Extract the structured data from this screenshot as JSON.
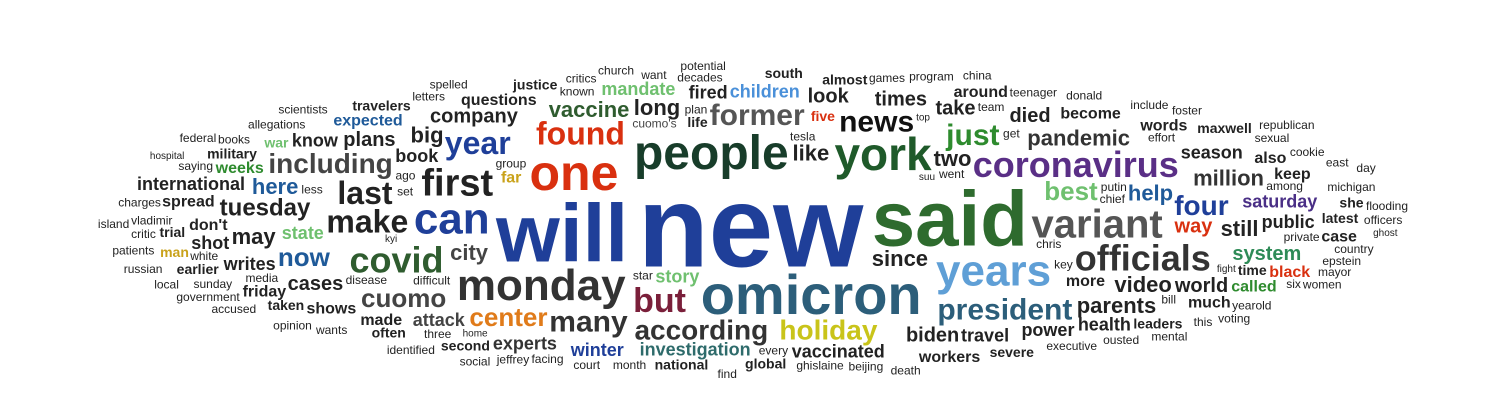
{
  "words": [
    {
      "text": "said",
      "size": 78,
      "color": "#2e6b2e"
    },
    {
      "text": "new",
      "size": 116,
      "color": "#1f3f99"
    },
    {
      "text": "will",
      "size": 82,
      "color": "#1f3f99"
    },
    {
      "text": "omicron",
      "size": 56,
      "color": "#2c5e7a"
    },
    {
      "text": "years",
      "size": 44,
      "color": "#5f9fd6"
    },
    {
      "text": "people",
      "size": 48,
      "color": "#183d2a"
    },
    {
      "text": "one",
      "size": 50,
      "color": "#d9300f"
    },
    {
      "text": "york",
      "size": 46,
      "color": "#1f5a2a"
    },
    {
      "text": "can",
      "size": 44,
      "color": "#1f3f99"
    },
    {
      "text": "monday",
      "size": 44,
      "color": "#333333"
    },
    {
      "text": "variant",
      "size": 40,
      "color": "#555555"
    },
    {
      "text": "coronavirus",
      "size": 36,
      "color": "#5a2f86"
    },
    {
      "text": "covid",
      "size": 36,
      "color": "#2f5c2f"
    },
    {
      "text": "first",
      "size": 38,
      "color": "#222222"
    },
    {
      "text": "officials",
      "size": 36,
      "color": "#333333"
    },
    {
      "text": "make",
      "size": 32,
      "color": "#222222"
    },
    {
      "text": "last",
      "size": 32,
      "color": "#222222"
    },
    {
      "text": "former",
      "size": 30,
      "color": "#555555"
    },
    {
      "text": "year",
      "size": 32,
      "color": "#1f3f99"
    },
    {
      "text": "found",
      "size": 32,
      "color": "#d9300f"
    },
    {
      "text": "but",
      "size": 34,
      "color": "#7a1f3a"
    },
    {
      "text": "just",
      "size": 30,
      "color": "#2e8b2e"
    },
    {
      "text": "four",
      "size": 28,
      "color": "#1f3f99"
    },
    {
      "text": "holiday",
      "size": 28,
      "color": "#c9c41a"
    },
    {
      "text": "president",
      "size": 30,
      "color": "#2c5e7a"
    },
    {
      "text": "many",
      "size": 30,
      "color": "#333333"
    },
    {
      "text": "including",
      "size": 28,
      "color": "#444444"
    },
    {
      "text": "news",
      "size": 30,
      "color": "#111111"
    },
    {
      "text": "best",
      "size": 26,
      "color": "#6fc06f"
    },
    {
      "text": "according",
      "size": 28,
      "color": "#333333"
    },
    {
      "text": "cuomo",
      "size": 26,
      "color": "#444444"
    },
    {
      "text": "now",
      "size": 26,
      "color": "#1f5a99"
    },
    {
      "text": "center",
      "size": 26,
      "color": "#e07b1a"
    },
    {
      "text": "tuesday",
      "size": 24,
      "color": "#222222"
    },
    {
      "text": "pandemic",
      "size": 22,
      "color": "#333333"
    },
    {
      "text": "vaccine",
      "size": 22,
      "color": "#2f5c2f"
    },
    {
      "text": "video",
      "size": 22,
      "color": "#222222"
    },
    {
      "text": "million",
      "size": 22,
      "color": "#333333"
    },
    {
      "text": "city",
      "size": 22,
      "color": "#444444"
    },
    {
      "text": "biden",
      "size": 20,
      "color": "#222222"
    },
    {
      "text": "children",
      "size": 18,
      "color": "#4a90d9"
    },
    {
      "text": "company",
      "size": 20,
      "color": "#222222"
    },
    {
      "text": "cases",
      "size": 20,
      "color": "#222222"
    },
    {
      "text": "parents",
      "size": 22,
      "color": "#222222"
    },
    {
      "text": "long",
      "size": 22,
      "color": "#222222"
    },
    {
      "text": "plans",
      "size": 20,
      "color": "#222222"
    },
    {
      "text": "take",
      "size": 20,
      "color": "#222222"
    },
    {
      "text": "since",
      "size": 22,
      "color": "#222222"
    },
    {
      "text": "system",
      "size": 20,
      "color": "#2e8b57"
    },
    {
      "text": "times",
      "size": 20,
      "color": "#222222"
    },
    {
      "text": "look",
      "size": 20,
      "color": "#222222"
    },
    {
      "text": "book",
      "size": 18,
      "color": "#222222"
    },
    {
      "text": "help",
      "size": 22,
      "color": "#1f5a99"
    },
    {
      "text": "like",
      "size": 22,
      "color": "#222222"
    },
    {
      "text": "two",
      "size": 22,
      "color": "#222222"
    },
    {
      "text": "may",
      "size": 22,
      "color": "#222222"
    },
    {
      "text": "still",
      "size": 22,
      "color": "#222222"
    },
    {
      "text": "big",
      "size": 22,
      "color": "#222222"
    },
    {
      "text": "here",
      "size": 22,
      "color": "#1f5a99"
    },
    {
      "text": "way",
      "size": 20,
      "color": "#d9300f"
    },
    {
      "text": "saturday",
      "size": 18,
      "color": "#4a2f86"
    },
    {
      "text": "investigation",
      "size": 18,
      "color": "#2e6b6b"
    },
    {
      "text": "attack",
      "size": 18,
      "color": "#444444"
    },
    {
      "text": "travel",
      "size": 18,
      "color": "#222222"
    },
    {
      "text": "world",
      "size": 20,
      "color": "#222222"
    },
    {
      "text": "died",
      "size": 20,
      "color": "#222222"
    },
    {
      "text": "vaccinated",
      "size": 18,
      "color": "#222222"
    },
    {
      "text": "writes",
      "size": 18,
      "color": "#222222"
    },
    {
      "text": "season",
      "size": 18,
      "color": "#222222"
    },
    {
      "text": "power",
      "size": 18,
      "color": "#222222"
    },
    {
      "text": "public",
      "size": 18,
      "color": "#222222"
    },
    {
      "text": "know",
      "size": 18,
      "color": "#222222"
    },
    {
      "text": "don't",
      "size": 16,
      "color": "#222222"
    },
    {
      "text": "winter",
      "size": 18,
      "color": "#1f3f99"
    },
    {
      "text": "experts",
      "size": 18,
      "color": "#333333"
    },
    {
      "text": "expected",
      "size": 16,
      "color": "#1f5a99"
    },
    {
      "text": "shows",
      "size": 16,
      "color": "#222222"
    },
    {
      "text": "questions",
      "size": 16,
      "color": "#222222"
    },
    {
      "text": "weeks",
      "size": 16,
      "color": "#2e8b2e"
    },
    {
      "text": "become",
      "size": 16,
      "color": "#222222"
    },
    {
      "text": "more",
      "size": 16,
      "color": "#222222"
    },
    {
      "text": "international",
      "size": 18,
      "color": "#222222"
    },
    {
      "text": "story",
      "size": 18,
      "color": "#6fc06f"
    },
    {
      "text": "state",
      "size": 18,
      "color": "#6fc06f"
    },
    {
      "text": "mandate",
      "size": 18,
      "color": "#6fc06f"
    },
    {
      "text": "spread",
      "size": 16,
      "color": "#222222"
    },
    {
      "text": "shot",
      "size": 18,
      "color": "#222222"
    },
    {
      "text": "fired",
      "size": 18,
      "color": "#222222"
    },
    {
      "text": "keep",
      "size": 16,
      "color": "#222222"
    },
    {
      "text": "words",
      "size": 16,
      "color": "#222222"
    },
    {
      "text": "called",
      "size": 16,
      "color": "#2e8b2e"
    },
    {
      "text": "health",
      "size": 18,
      "color": "#222222"
    },
    {
      "text": "much",
      "size": 16,
      "color": "#222222"
    },
    {
      "text": "made",
      "size": 16,
      "color": "#222222"
    },
    {
      "text": "around",
      "size": 16,
      "color": "#222222"
    },
    {
      "text": "also",
      "size": 16,
      "color": "#222222"
    },
    {
      "text": "friday",
      "size": 16,
      "color": "#222222"
    },
    {
      "text": "black",
      "size": 16,
      "color": "#d9300f"
    },
    {
      "text": "workers",
      "size": 16,
      "color": "#222222"
    },
    {
      "text": "leaders",
      "size": 14,
      "color": "#222222"
    },
    {
      "text": "second",
      "size": 14,
      "color": "#222222"
    },
    {
      "text": "cuomo's",
      "size": 12,
      "color": "#444444"
    },
    {
      "text": "five",
      "size": 14,
      "color": "#d9300f"
    },
    {
      "text": "far",
      "size": 16,
      "color": "#c9a21a"
    },
    {
      "text": "man",
      "size": 14,
      "color": "#c9a21a"
    },
    {
      "text": "war",
      "size": 14,
      "color": "#6fc06f"
    },
    {
      "text": "life",
      "size": 14,
      "color": "#222222"
    },
    {
      "text": "case",
      "size": 16,
      "color": "#222222"
    },
    {
      "text": "taken",
      "size": 14,
      "color": "#222222"
    },
    {
      "text": "almost",
      "size": 14,
      "color": "#222222"
    },
    {
      "text": "decades",
      "size": 12,
      "color": "#222222"
    },
    {
      "text": "trial",
      "size": 14,
      "color": "#222222"
    },
    {
      "text": "latest",
      "size": 14,
      "color": "#222222"
    },
    {
      "text": "travelers",
      "size": 14,
      "color": "#222222"
    },
    {
      "text": "often",
      "size": 14,
      "color": "#222222"
    },
    {
      "text": "severe",
      "size": 14,
      "color": "#222222"
    },
    {
      "text": "earlier",
      "size": 14,
      "color": "#222222"
    },
    {
      "text": "national",
      "size": 14,
      "color": "#222222"
    },
    {
      "text": "military",
      "size": 14,
      "color": "#222222"
    },
    {
      "text": "south",
      "size": 14,
      "color": "#222222"
    },
    {
      "text": "private",
      "size": 12,
      "color": "#222222"
    },
    {
      "text": "global",
      "size": 14,
      "color": "#222222"
    },
    {
      "text": "disease",
      "size": 12,
      "color": "#222222"
    },
    {
      "text": "maxwell",
      "size": 14,
      "color": "#222222"
    },
    {
      "text": "sunday",
      "size": 12,
      "color": "#222222"
    },
    {
      "text": "executive",
      "size": 12,
      "color": "#222222"
    },
    {
      "text": "saying",
      "size": 12,
      "color": "#222222"
    },
    {
      "text": "charges",
      "size": 12,
      "color": "#222222"
    },
    {
      "text": "teenager",
      "size": 12,
      "color": "#222222"
    },
    {
      "text": "tesla",
      "size": 12,
      "color": "#222222"
    },
    {
      "text": "every",
      "size": 12,
      "color": "#222222"
    },
    {
      "text": "michigan",
      "size": 12,
      "color": "#222222"
    },
    {
      "text": "country",
      "size": 12,
      "color": "#222222"
    },
    {
      "text": "yearold",
      "size": 12,
      "color": "#222222"
    },
    {
      "text": "less",
      "size": 12,
      "color": "#222222"
    },
    {
      "text": "games",
      "size": 12,
      "color": "#222222"
    },
    {
      "text": "allegations",
      "size": 12,
      "color": "#222222"
    },
    {
      "text": "ghislaine",
      "size": 12,
      "color": "#222222"
    },
    {
      "text": "mayor",
      "size": 12,
      "color": "#222222"
    },
    {
      "text": "justice",
      "size": 14,
      "color": "#222222"
    },
    {
      "text": "effort",
      "size": 12,
      "color": "#222222"
    },
    {
      "text": "star",
      "size": 12,
      "color": "#222222"
    },
    {
      "text": "among",
      "size": 12,
      "color": "#222222"
    },
    {
      "text": "wants",
      "size": 12,
      "color": "#222222"
    },
    {
      "text": "vladimir",
      "size": 12,
      "color": "#222222"
    },
    {
      "text": "went",
      "size": 12,
      "color": "#222222"
    },
    {
      "text": "cookie",
      "size": 12,
      "color": "#222222"
    },
    {
      "text": "books",
      "size": 12,
      "color": "#222222"
    },
    {
      "text": "government",
      "size": 12,
      "color": "#222222"
    },
    {
      "text": "media",
      "size": 12,
      "color": "#222222"
    },
    {
      "text": "ousted",
      "size": 12,
      "color": "#222222"
    },
    {
      "text": "she",
      "size": 14,
      "color": "#222222"
    },
    {
      "text": "want",
      "size": 12,
      "color": "#222222"
    },
    {
      "text": "team",
      "size": 12,
      "color": "#222222"
    },
    {
      "text": "group",
      "size": 12,
      "color": "#222222"
    },
    {
      "text": "month",
      "size": 12,
      "color": "#222222"
    },
    {
      "text": "facing",
      "size": 12,
      "color": "#222222"
    },
    {
      "text": "include",
      "size": 12,
      "color": "#222222"
    },
    {
      "text": "three",
      "size": 12,
      "color": "#222222"
    },
    {
      "text": "chief",
      "size": 12,
      "color": "#222222"
    },
    {
      "text": "critics",
      "size": 12,
      "color": "#222222"
    },
    {
      "text": "putin",
      "size": 12,
      "color": "#222222"
    },
    {
      "text": "letters",
      "size": 12,
      "color": "#222222"
    },
    {
      "text": "plan",
      "size": 12,
      "color": "#222222"
    },
    {
      "text": "known",
      "size": 12,
      "color": "#222222"
    },
    {
      "text": "program",
      "size": 12,
      "color": "#222222"
    },
    {
      "text": "sexual",
      "size": 12,
      "color": "#222222"
    },
    {
      "text": "critic",
      "size": 12,
      "color": "#222222"
    },
    {
      "text": "white",
      "size": 12,
      "color": "#222222"
    },
    {
      "text": "donald",
      "size": 12,
      "color": "#222222"
    },
    {
      "text": "beijing",
      "size": 12,
      "color": "#222222"
    },
    {
      "text": "officers",
      "size": 12,
      "color": "#222222"
    },
    {
      "text": "voting",
      "size": 12,
      "color": "#222222"
    },
    {
      "text": "accused",
      "size": 12,
      "color": "#222222"
    },
    {
      "text": "opinion",
      "size": 12,
      "color": "#222222"
    },
    {
      "text": "difficult",
      "size": 12,
      "color": "#222222"
    },
    {
      "text": "patients",
      "size": 12,
      "color": "#222222"
    },
    {
      "text": "jeffrey",
      "size": 12,
      "color": "#222222"
    },
    {
      "text": "mental",
      "size": 12,
      "color": "#222222"
    },
    {
      "text": "epstein",
      "size": 12,
      "color": "#222222"
    },
    {
      "text": "russian",
      "size": 12,
      "color": "#222222"
    },
    {
      "text": "women",
      "size": 12,
      "color": "#222222"
    },
    {
      "text": "scientists",
      "size": 12,
      "color": "#222222"
    },
    {
      "text": "potential",
      "size": 12,
      "color": "#222222"
    },
    {
      "text": "spelled",
      "size": 12,
      "color": "#222222"
    },
    {
      "text": "chris",
      "size": 12,
      "color": "#222222"
    },
    {
      "text": "church",
      "size": 12,
      "color": "#222222"
    },
    {
      "text": "court",
      "size": 12,
      "color": "#222222"
    },
    {
      "text": "east",
      "size": 12,
      "color": "#222222"
    },
    {
      "text": "foster",
      "size": 12,
      "color": "#222222"
    },
    {
      "text": "identified",
      "size": 12,
      "color": "#222222"
    },
    {
      "text": "island",
      "size": 12,
      "color": "#222222"
    },
    {
      "text": "republican",
      "size": 12,
      "color": "#222222"
    },
    {
      "text": "china",
      "size": 12,
      "color": "#222222"
    },
    {
      "text": "social",
      "size": 12,
      "color": "#222222"
    },
    {
      "text": "flooding",
      "size": 12,
      "color": "#222222"
    },
    {
      "text": "federal",
      "size": 12,
      "color": "#222222"
    },
    {
      "text": "local",
      "size": 12,
      "color": "#222222"
    },
    {
      "text": "bill",
      "size": 12,
      "color": "#222222"
    },
    {
      "text": "get",
      "size": 12,
      "color": "#222222"
    },
    {
      "text": "key",
      "size": 12,
      "color": "#222222"
    },
    {
      "text": "ago",
      "size": 12,
      "color": "#222222"
    },
    {
      "text": "six",
      "size": 12,
      "color": "#222222"
    },
    {
      "text": "set",
      "size": 12,
      "color": "#222222"
    },
    {
      "text": "death",
      "size": 12,
      "color": "#222222"
    },
    {
      "text": "this",
      "size": 12,
      "color": "#222222"
    },
    {
      "text": "hospital",
      "size": 10,
      "color": "#222222"
    },
    {
      "text": "top",
      "size": 10,
      "color": "#222222"
    },
    {
      "text": "kyi",
      "size": 10,
      "color": "#222222"
    },
    {
      "text": "suu",
      "size": 10,
      "color": "#222222"
    },
    {
      "text": "find",
      "size": 12,
      "color": "#222222"
    },
    {
      "text": "time",
      "size": 14,
      "color": "#222222"
    },
    {
      "text": "day",
      "size": 12,
      "color": "#222222"
    },
    {
      "text": "home",
      "size": 10,
      "color": "#222222"
    },
    {
      "text": "fight",
      "size": 10,
      "color": "#222222"
    },
    {
      "text": "ghost",
      "size": 10,
      "color": "#222222"
    }
  ]
}
